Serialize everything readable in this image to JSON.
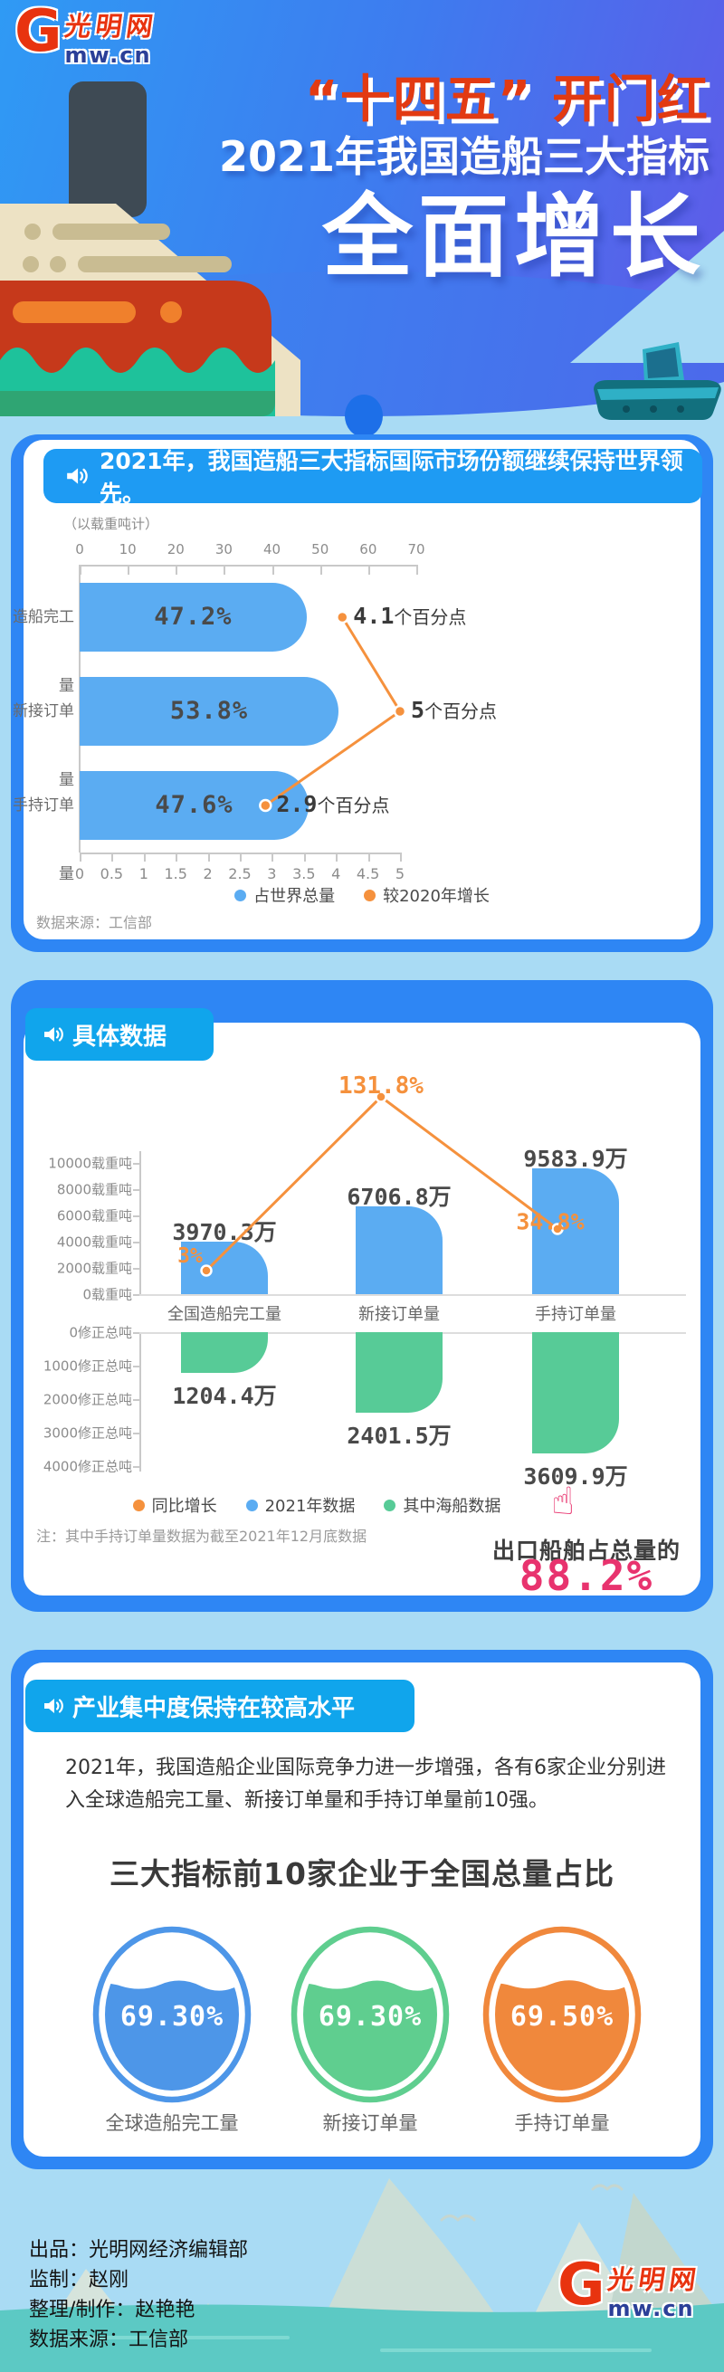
{
  "logo": {
    "g": "G",
    "cn": "光明网",
    "domain": "mw.cn"
  },
  "header": {
    "line1": "“十四五” 开门红",
    "line2": "2021年我国造船三大指标",
    "line3": "全面增长"
  },
  "section1": {
    "header": "2021年，我国造船三大指标国际市场份额继续保持世界领先。",
    "unit_note": "（以载重吨计）",
    "source": "数据来源：工信部"
  },
  "section2": {
    "tab": "具体数据",
    "note": "注：其中手持订单量数据为截至2021年12月底数据",
    "callout_text": "出口船舶占总量的",
    "callout_value": "88.2%"
  },
  "section3": {
    "tab": "产业集中度保持在较高水平",
    "paragraph": "2021年，我国造船企业国际竞争力进一步增强，各有6家企业分别进入全球造船完工量、新接订单量和手持订单量前10强。",
    "title": "三大指标前10家企业于全国总量占比"
  },
  "footer": {
    "line1": "出品：光明网经济编辑部",
    "line2": "监制：赵刚",
    "line3": "整理/制作：赵艳艳",
    "line4": "数据来源：工信部"
  },
  "chart_data": [
    {
      "type": "bar",
      "orientation": "horizontal",
      "title": "2021年，我国造船三大指标国际市场份额继续保持世界领先。",
      "unit_note": "（以载重吨计）",
      "categories": [
        "造船完工量",
        "新接订单量",
        "手持订单量"
      ],
      "series": [
        {
          "name": "占世界总量",
          "type": "bar",
          "color": "#5BACF2",
          "unit": "%",
          "values": [
            47.2,
            53.8,
            47.6
          ],
          "labels": [
            "47.2%",
            "53.8%",
            "47.6%"
          ],
          "axis": "top",
          "axis_range": [
            0,
            70
          ],
          "axis_ticks": [
            0,
            10,
            20,
            30,
            40,
            50,
            60,
            70
          ]
        },
        {
          "name": "较2020年增长",
          "type": "line",
          "color": "#F5913D",
          "unit": "个百分点",
          "values": [
            4.1,
            5,
            2.9
          ],
          "labels": [
            "4.1个百分点",
            "5个百分点",
            "2.9个百分点"
          ],
          "axis": "bottom",
          "axis_range": [
            0,
            5
          ],
          "axis_ticks": [
            0,
            0.5,
            1,
            1.5,
            2,
            2.5,
            3,
            3.5,
            4,
            4.5,
            5
          ]
        }
      ],
      "legend": [
        "占世界总量",
        "较2020年增长"
      ],
      "legend_position": "bottom",
      "grid": false,
      "source": "数据来源：工信部"
    },
    {
      "type": "combo",
      "categories": [
        "全国造船完工量",
        "新接订单量",
        "手持订单量"
      ],
      "series": [
        {
          "name": "同比增长",
          "type": "line",
          "color": "#F5913D",
          "unit": "%",
          "values": [
            3,
            131.8,
            34.8
          ],
          "labels": [
            "3%",
            "131.8%",
            "34.8%"
          ]
        },
        {
          "name": "2021年数据",
          "type": "bar",
          "color": "#5BACF2",
          "unit": "万载重吨",
          "direction": "up",
          "values": [
            3970.3,
            6706.8,
            9583.9
          ],
          "labels": [
            "3970.3万",
            "6706.8万",
            "9583.9万"
          ],
          "axis_range": [
            0,
            10000
          ],
          "axis_ticks": [
            "10000载重吨",
            "8000载重吨",
            "6000载重吨",
            "4000载重吨",
            "2000载重吨",
            "0载重吨"
          ]
        },
        {
          "name": "其中海船数据",
          "type": "bar",
          "color": "#57CB97",
          "unit": "万修正总吨",
          "direction": "down",
          "values": [
            1204.4,
            2401.5,
            3609.9
          ],
          "labels": [
            "1204.4万",
            "2401.5万",
            "3609.9万"
          ],
          "axis_range": [
            0,
            4000
          ],
          "axis_ticks": [
            "0修正总吨",
            "1000修正总吨",
            "2000修正总吨",
            "3000修正总吨",
            "4000修正总吨"
          ]
        }
      ],
      "legend": [
        "同比增长",
        "2021年数据",
        "其中海船数据"
      ],
      "note": "注：其中手持订单量数据为截至2021年12月底数据",
      "callout": {
        "text": "出口船舶占总量的",
        "value": "88.2%",
        "color": "#E8336E"
      }
    },
    {
      "type": "liquid-gauge",
      "title": "三大指标前10家企业于全国总量占比",
      "items": [
        {
          "label": "全球造船完工量",
          "value": "69.30%",
          "pct": 69.3,
          "color": "#4D96E8"
        },
        {
          "label": "新接订单量",
          "value": "69.30%",
          "pct": 69.3,
          "color": "#5FCE8F"
        },
        {
          "label": "手持订单量",
          "value": "69.50%",
          "pct": 69.5,
          "color": "#F0883C"
        }
      ]
    }
  ]
}
